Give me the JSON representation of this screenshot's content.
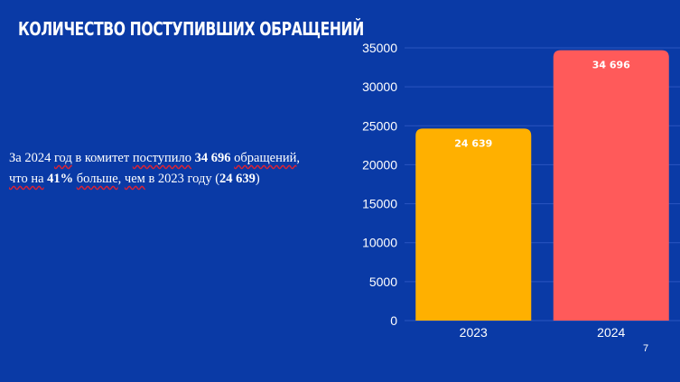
{
  "slide": {
    "title": "Количество поступивших обращений",
    "page_number": "7",
    "text": {
      "p1": "За 2024 ",
      "p2": "год",
      "p3": " в комитет ",
      "p4": "поступило",
      "p5": "34 696",
      "p6": "обращений",
      "p7": ",",
      "p8": "что на",
      "p9": "41%",
      "p10": "больше",
      "p11": ",",
      "p12": "чем",
      "p13": " в 2023 году (",
      "p14": "24 639",
      "p15": ")"
    }
  },
  "chart_data": {
    "type": "bar",
    "categories": [
      "2023",
      "2024"
    ],
    "values": [
      24639,
      34696
    ],
    "data_labels": [
      "24 639",
      "34 696"
    ],
    "bar_colors": [
      "#ffb000",
      "#ff5a5a"
    ],
    "ylim": [
      0,
      35000
    ],
    "yticks": [
      0,
      5000,
      10000,
      15000,
      20000,
      25000,
      30000,
      35000
    ],
    "grid": true,
    "gridline_color": "#2a55c0",
    "title": "",
    "xlabel": "",
    "ylabel": ""
  }
}
